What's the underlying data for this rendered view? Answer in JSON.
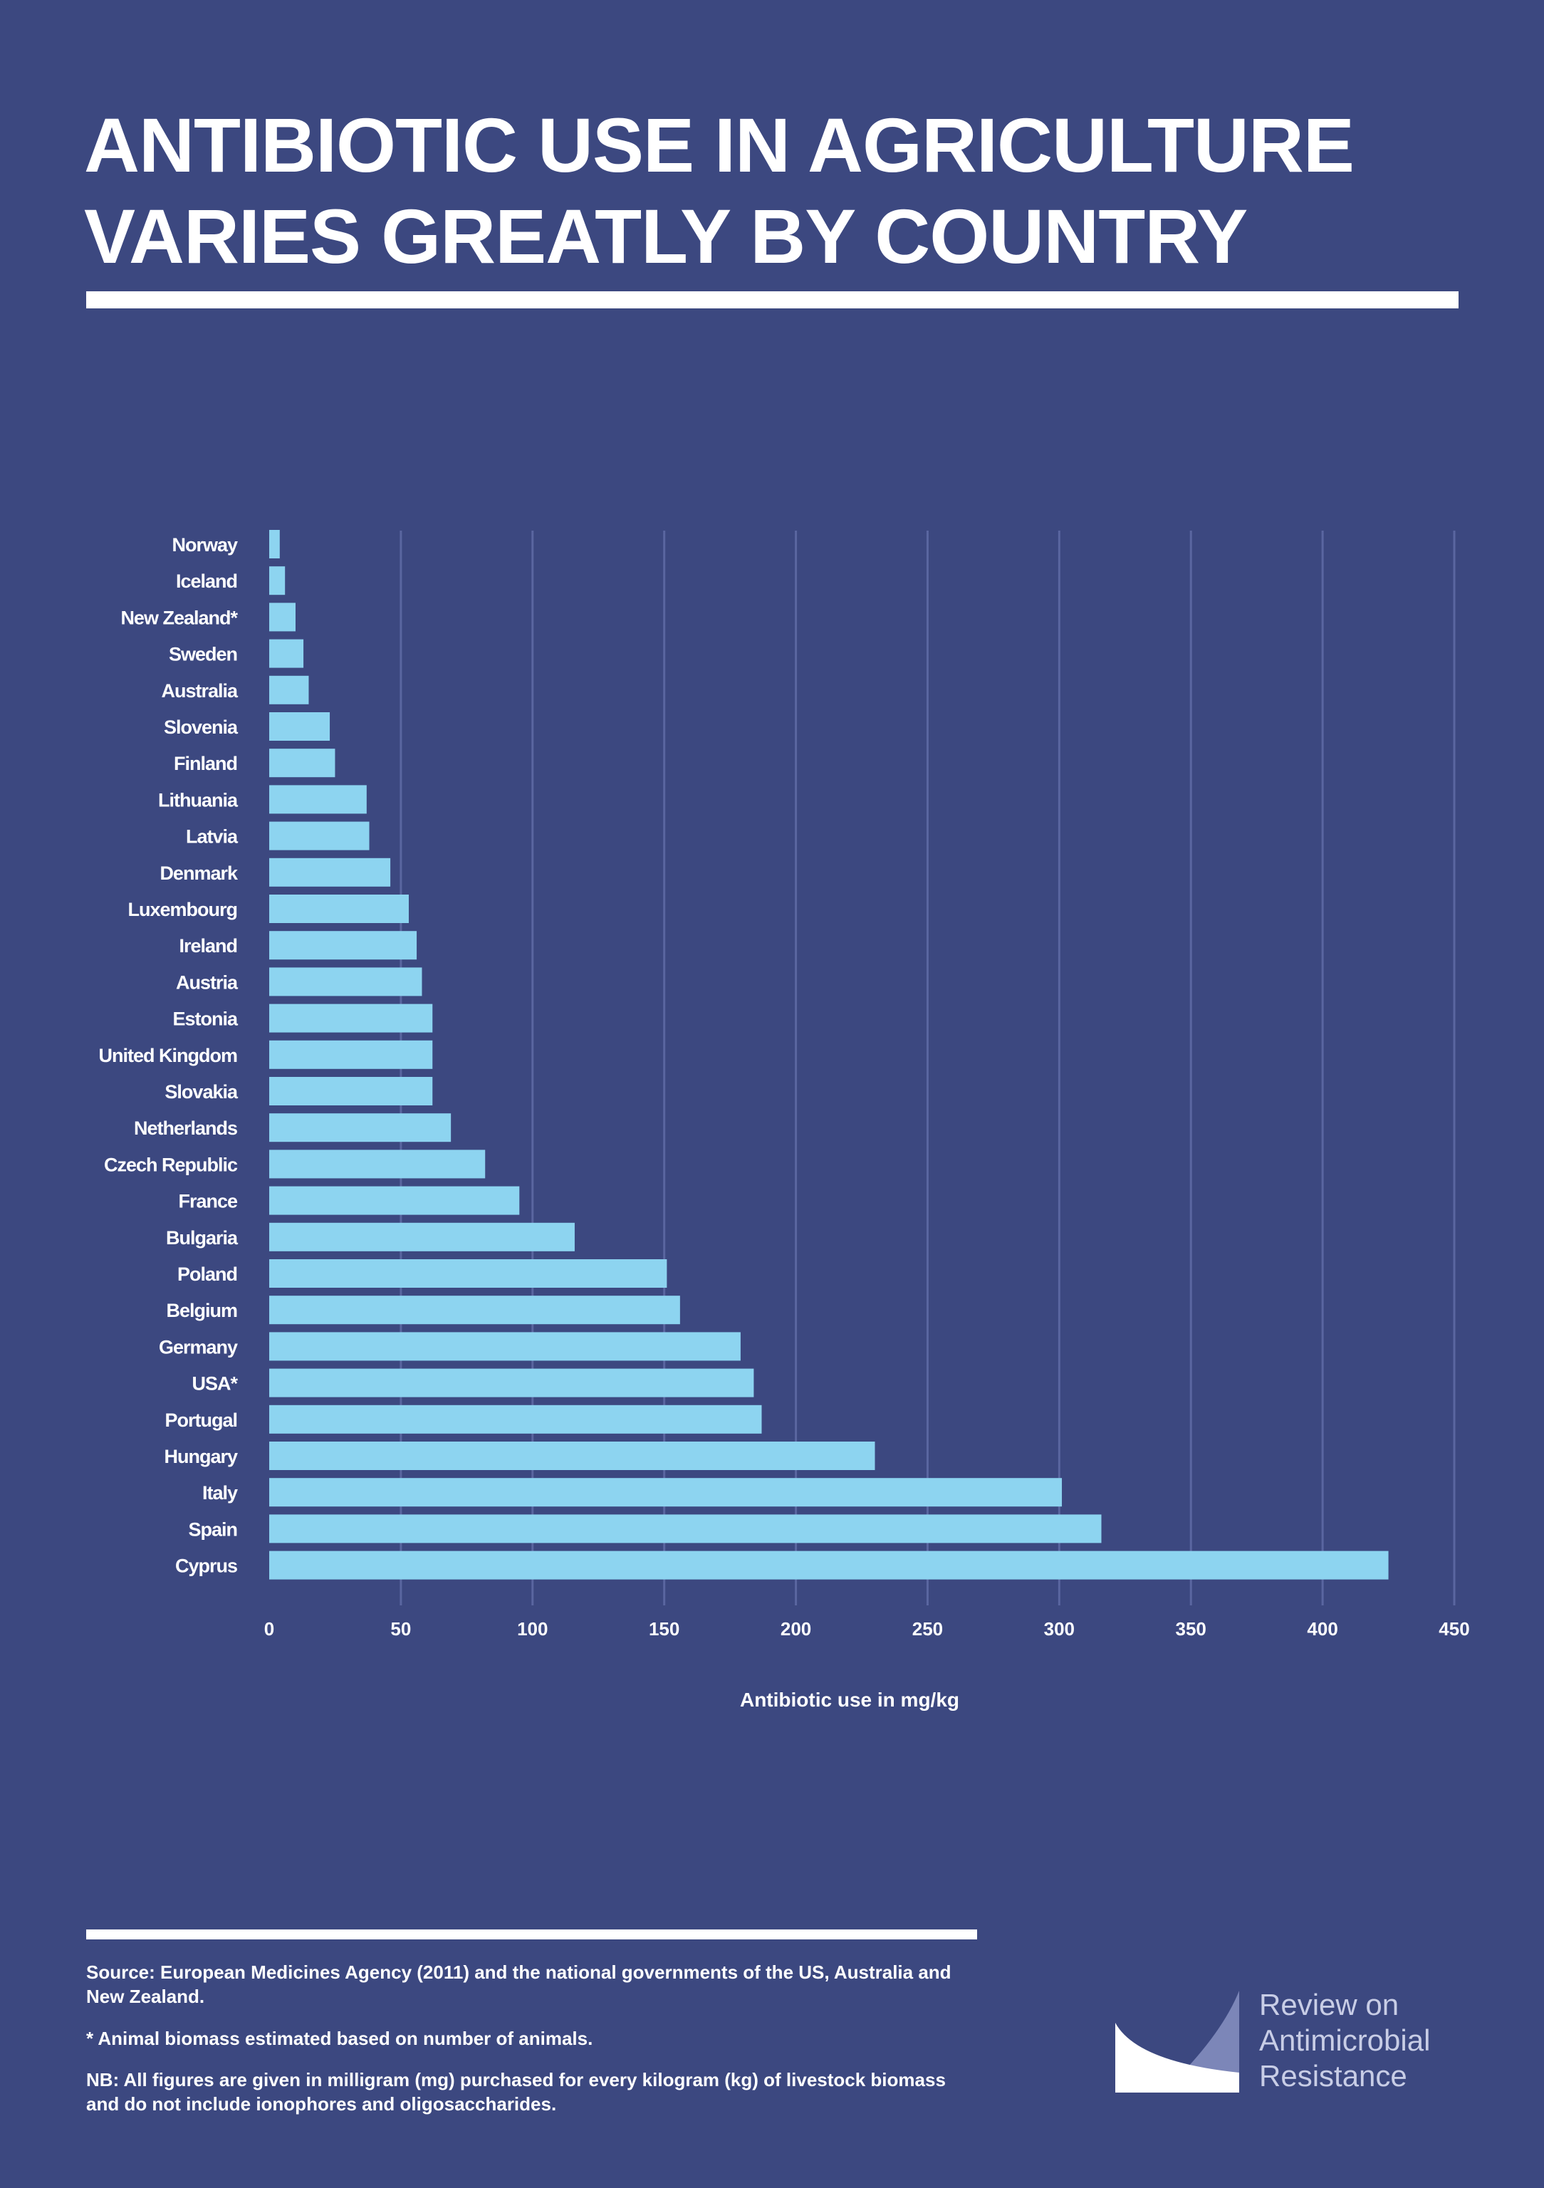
{
  "title_lines": [
    "ANTIBIOTIC USE IN AGRICULTURE",
    "VARIES GREATLY BY COUNTRY"
  ],
  "chart_data": {
    "type": "bar",
    "orientation": "horizontal",
    "xlabel": "Antibiotic use in mg/kg",
    "xlim": [
      0,
      450
    ],
    "xticks": [
      0,
      50,
      100,
      150,
      200,
      250,
      300,
      350,
      400,
      450
    ],
    "grid": true,
    "bar_color": "#8dd4f0",
    "categories": [
      "Norway",
      "Iceland",
      "New Zealand*",
      "Sweden",
      "Australia",
      "Slovenia",
      "Finland",
      "Lithuania",
      "Latvia",
      "Denmark",
      "Luxembourg",
      "Ireland",
      "Austria",
      "Estonia",
      "United Kingdom",
      "Slovakia",
      "Netherlands",
      "Czech Republic",
      "France",
      "Bulgaria",
      "Poland",
      "Belgium",
      "Germany",
      "USA*",
      "Portugal",
      "Hungary",
      "Italy",
      "Spain",
      "Cyprus"
    ],
    "values": [
      4,
      6,
      10,
      13,
      15,
      23,
      25,
      37,
      38,
      46,
      53,
      56,
      58,
      62,
      62,
      62,
      69,
      82,
      95,
      116,
      151,
      156,
      179,
      184,
      187,
      230,
      301,
      316,
      425
    ]
  },
  "footer": {
    "source": "Source: European Medicines Agency (2011) and the national governments of the US, Australia and New Zealand.",
    "note1": "* Animal biomass estimated based on number of animals.",
    "note2": "NB: All figures are given in milligram (mg) purchased for every kilogram (kg) of livestock biomass and do not include ionophores and oligosaccharides."
  },
  "logo": {
    "lines": [
      "Review on",
      "Antimicrobial",
      "Resistance"
    ]
  },
  "colors": {
    "background": "#3c4880",
    "bars": "#8dd4f0",
    "text": "#ffffff"
  }
}
